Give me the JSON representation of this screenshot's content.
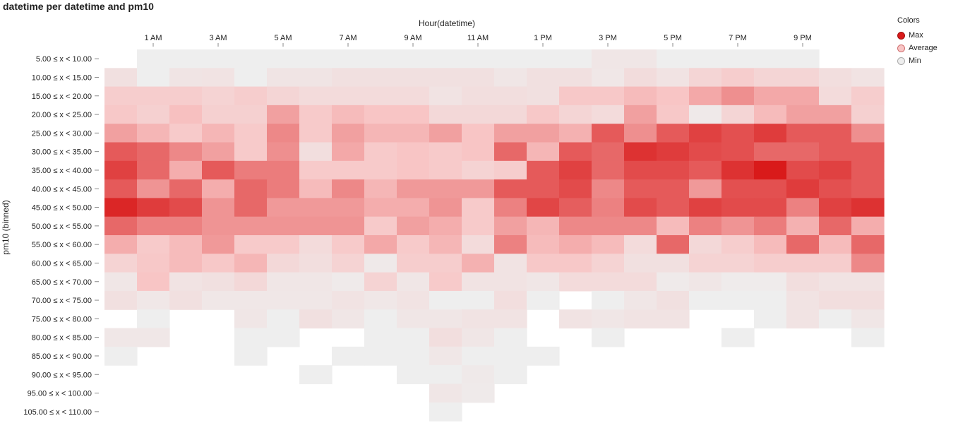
{
  "chart_data": {
    "type": "heatmap",
    "title": "datetime per datetime and pm10",
    "xlabel": "Hour(datetime)",
    "ylabel": "pm10 (binned)",
    "x_categories": [
      0,
      1,
      2,
      3,
      4,
      5,
      6,
      7,
      8,
      9,
      10,
      11,
      12,
      13,
      14,
      15,
      16,
      17,
      18,
      19,
      20,
      21,
      22,
      23
    ],
    "x_tick_labels": [
      {
        "hour": 1,
        "label": "1 AM"
      },
      {
        "hour": 3,
        "label": "3 AM"
      },
      {
        "hour": 5,
        "label": "5 AM"
      },
      {
        "hour": 7,
        "label": "7 AM"
      },
      {
        "hour": 9,
        "label": "9 AM"
      },
      {
        "hour": 11,
        "label": "11 AM"
      },
      {
        "hour": 13,
        "label": "1 PM"
      },
      {
        "hour": 15,
        "label": "3 PM"
      },
      {
        "hour": 17,
        "label": "5 PM"
      },
      {
        "hour": 19,
        "label": "7 PM"
      },
      {
        "hour": 21,
        "label": "9 PM"
      }
    ],
    "y_categories": [
      "5.00 ≤ x < 10.00",
      "10.00 ≤ x < 15.00",
      "15.00 ≤ x < 20.00",
      "20.00 ≤ x < 25.00",
      "25.00 ≤ x < 30.00",
      "30.00 ≤ x < 35.00",
      "35.00 ≤ x < 40.00",
      "40.00 ≤ x < 45.00",
      "45.00 ≤ x < 50.00",
      "50.00 ≤ x < 55.00",
      "55.00 ≤ x < 60.00",
      "60.00 ≤ x < 65.00",
      "65.00 ≤ x < 70.00",
      "70.00 ≤ x < 75.00",
      "75.00 ≤ x < 80.00",
      "80.00 ≤ x < 85.00",
      "85.00 ≤ x < 90.00",
      "90.00 ≤ x < 95.00",
      "95.00 ≤ x < 100.00",
      "105.00 ≤ x < 110.00"
    ],
    "values_note": "-1 = no cell; 0 = min (grey) ... 1 = max (red)",
    "values": [
      [
        -1,
        0,
        0,
        0,
        0,
        0,
        0,
        0,
        0,
        0,
        0,
        0,
        0,
        0,
        0,
        0.06,
        0.06,
        0,
        0,
        0,
        0,
        0,
        -1,
        -1
      ],
      [
        0.1,
        0,
        0.07,
        0.08,
        0,
        0.07,
        0.07,
        0.1,
        0.1,
        0.1,
        0.1,
        0.1,
        0.06,
        0.1,
        0.1,
        0.05,
        0.13,
        0.08,
        0.18,
        0.24,
        0.18,
        0.18,
        0.12,
        0.08
      ],
      [
        0.24,
        0.24,
        0.24,
        0.2,
        0.24,
        0.18,
        0.14,
        0.14,
        0.14,
        0.14,
        0.08,
        0.12,
        0.12,
        0.1,
        0.28,
        0.28,
        0.34,
        0.3,
        0.42,
        0.52,
        0.42,
        0.42,
        0.14,
        0.24
      ],
      [
        0.28,
        0.22,
        0.32,
        0.22,
        0.22,
        0.45,
        0.26,
        0.34,
        0.3,
        0.3,
        0.16,
        0.16,
        0.16,
        0.28,
        0.18,
        0.14,
        0.45,
        0.28,
        0.04,
        0.18,
        0.34,
        0.45,
        0.45,
        0.22
      ],
      [
        0.45,
        0.36,
        0.26,
        0.36,
        0.26,
        0.55,
        0.26,
        0.45,
        0.36,
        0.36,
        0.45,
        0.3,
        0.45,
        0.45,
        0.38,
        0.74,
        0.52,
        0.74,
        0.84,
        0.78,
        0.86,
        0.74,
        0.74,
        0.52
      ],
      [
        0.74,
        0.68,
        0.55,
        0.45,
        0.26,
        0.52,
        0.12,
        0.42,
        0.26,
        0.3,
        0.26,
        0.3,
        0.68,
        0.36,
        0.74,
        0.68,
        0.9,
        0.86,
        0.8,
        0.78,
        0.68,
        0.68,
        0.74,
        0.74
      ],
      [
        0.84,
        0.68,
        0.4,
        0.74,
        0.6,
        0.6,
        0.26,
        0.26,
        0.26,
        0.3,
        0.26,
        0.2,
        0.24,
        0.74,
        0.84,
        0.68,
        0.8,
        0.8,
        0.74,
        0.9,
        1.0,
        0.8,
        0.84,
        0.74
      ],
      [
        0.74,
        0.5,
        0.68,
        0.4,
        0.68,
        0.6,
        0.34,
        0.55,
        0.36,
        0.48,
        0.48,
        0.48,
        0.74,
        0.74,
        0.8,
        0.55,
        0.74,
        0.74,
        0.48,
        0.78,
        0.78,
        0.86,
        0.78,
        0.74
      ],
      [
        0.95,
        0.86,
        0.8,
        0.5,
        0.68,
        0.48,
        0.48,
        0.48,
        0.4,
        0.4,
        0.5,
        0.26,
        0.58,
        0.82,
        0.72,
        0.58,
        0.8,
        0.74,
        0.84,
        0.8,
        0.8,
        0.58,
        0.84,
        0.9
      ],
      [
        0.68,
        0.58,
        0.58,
        0.5,
        0.5,
        0.5,
        0.5,
        0.5,
        0.26,
        0.45,
        0.4,
        0.26,
        0.45,
        0.36,
        0.55,
        0.55,
        0.55,
        0.34,
        0.58,
        0.5,
        0.6,
        0.38,
        0.68,
        0.4
      ],
      [
        0.4,
        0.26,
        0.34,
        0.48,
        0.26,
        0.26,
        0.14,
        0.26,
        0.42,
        0.26,
        0.36,
        0.14,
        0.58,
        0.34,
        0.4,
        0.34,
        0.14,
        0.68,
        0.16,
        0.24,
        0.34,
        0.68,
        0.34,
        0.68
      ],
      [
        0.2,
        0.28,
        0.34,
        0.28,
        0.36,
        0.16,
        0.12,
        0.2,
        0.04,
        0.24,
        0.24,
        0.38,
        0.08,
        0.28,
        0.28,
        0.2,
        0.1,
        0.1,
        0.2,
        0.2,
        0.24,
        0.24,
        0.24,
        0.55
      ],
      [
        0.06,
        0.3,
        0.08,
        0.1,
        0.16,
        0.06,
        0.06,
        0.03,
        0.2,
        0.06,
        0.26,
        0.08,
        0.08,
        0.06,
        0.14,
        0.14,
        0.14,
        0.03,
        0.06,
        0.02,
        0.02,
        0.12,
        0.08,
        0.08
      ],
      [
        0.1,
        0.05,
        0.1,
        0.05,
        0.05,
        0.05,
        0.05,
        0.08,
        0.05,
        0.08,
        0,
        0,
        0.12,
        0,
        -1,
        0,
        0.06,
        0.1,
        0,
        0,
        0,
        0.08,
        0.12,
        0.12
      ],
      [
        -1,
        0,
        -1,
        -1,
        0.06,
        0,
        0.1,
        0.06,
        0,
        0.06,
        0.06,
        0.08,
        0.08,
        -1,
        0.08,
        0.06,
        0.08,
        0.08,
        -1,
        -1,
        0,
        0.08,
        0,
        0.06
      ],
      [
        0.05,
        0.05,
        -1,
        -1,
        0,
        0,
        -1,
        -1,
        0,
        0,
        0.12,
        0.06,
        0,
        -1,
        -1,
        0,
        -1,
        -1,
        -1,
        0,
        -1,
        -1,
        -1,
        0
      ],
      [
        0,
        -1,
        -1,
        -1,
        0,
        -1,
        -1,
        0,
        0,
        0,
        0.05,
        0,
        0,
        0,
        -1,
        -1,
        -1,
        -1,
        -1,
        -1,
        -1,
        -1,
        -1,
        -1
      ],
      [
        -1,
        -1,
        -1,
        -1,
        -1,
        -1,
        0,
        -1,
        -1,
        0,
        0,
        0.04,
        0,
        -1,
        -1,
        -1,
        -1,
        -1,
        -1,
        -1,
        -1,
        -1,
        -1,
        -1
      ],
      [
        -1,
        -1,
        -1,
        -1,
        -1,
        -1,
        -1,
        -1,
        -1,
        -1,
        0.06,
        0.03,
        -1,
        -1,
        -1,
        -1,
        -1,
        -1,
        -1,
        -1,
        -1,
        -1,
        -1,
        -1
      ],
      [
        -1,
        -1,
        -1,
        -1,
        -1,
        -1,
        -1,
        -1,
        -1,
        -1,
        0,
        -1,
        -1,
        -1,
        -1,
        -1,
        -1,
        -1,
        -1,
        -1,
        -1,
        -1,
        -1,
        -1
      ]
    ],
    "color_min": "#eeeeee",
    "color_mid": "#f8c5c5",
    "color_max": "#d91a1a",
    "legend": {
      "title": "Colors",
      "placement": "top-right",
      "items": [
        {
          "label": "Max",
          "color": "#d91a1a",
          "border": "#a01010"
        },
        {
          "label": "Average",
          "color": "#f8c5c5",
          "border": "#d07070"
        },
        {
          "label": "Min",
          "color": "#eeeeee",
          "border": "#aaaaaa"
        }
      ]
    }
  }
}
